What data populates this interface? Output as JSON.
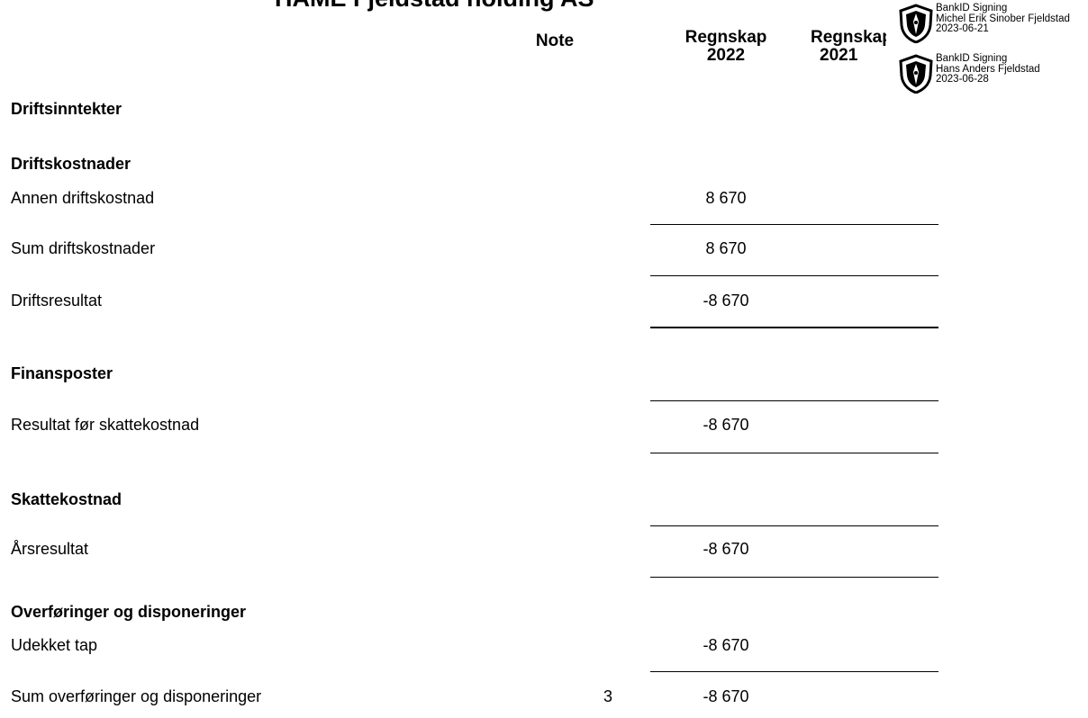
{
  "company_title": "HAME Fjeldstad holding AS",
  "headers": {
    "note": "Note",
    "current_line1": "Regnskap",
    "current_line2": "2022",
    "previous_line1": "Regnskap",
    "previous_line2": "2021"
  },
  "signatures": [
    {
      "label": "BankID Signing",
      "name": "Michel Erik Sinober Fjeldstad",
      "date": "2023-06-21"
    },
    {
      "label": "BankID Signing",
      "name": "Hans Anders Fjeldstad",
      "date": "2023-06-28"
    }
  ],
  "rows": {
    "driftsinntekter": {
      "label": "Driftsinntekter"
    },
    "driftskostnader": {
      "label": "Driftskostnader"
    },
    "annen_driftskostnad": {
      "label": "Annen driftskostnad",
      "value": "8 670"
    },
    "sum_driftskostnader": {
      "label": "Sum driftskostnader",
      "value": "8 670"
    },
    "driftsresultat": {
      "label": "Driftsresultat",
      "value": "-8 670"
    },
    "finansposter": {
      "label": "Finansposter"
    },
    "resultat_for_skatt": {
      "label": "Resultat før skattekostnad",
      "value": "-8 670"
    },
    "skattekostnad": {
      "label": "Skattekostnad"
    },
    "arsresultat": {
      "label": "Årsresultat",
      "value": "-8 670"
    },
    "overforinger": {
      "label": "Overføringer og disponeringer"
    },
    "udekket_tap": {
      "label": "Udekket tap",
      "value": "-8 670"
    },
    "sum_overforinger": {
      "label": "Sum overføringer og disponeringer",
      "note": "3",
      "value": "-8 670"
    }
  }
}
